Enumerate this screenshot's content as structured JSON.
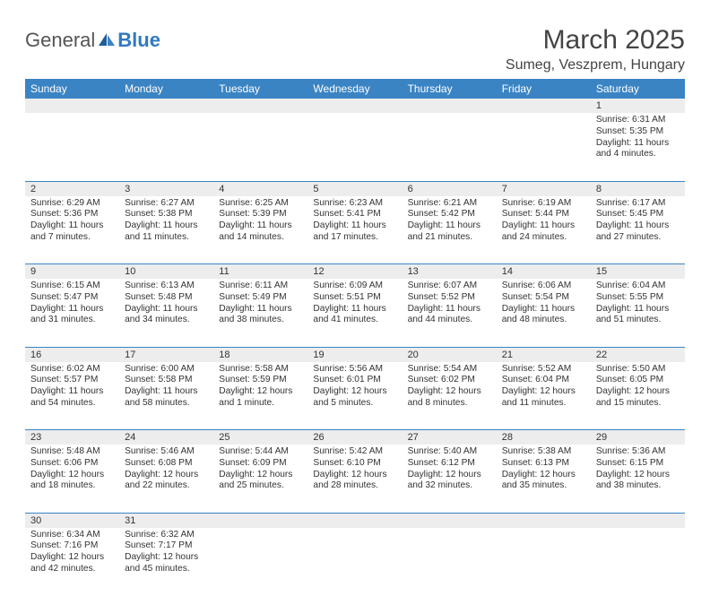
{
  "logo": {
    "text1": "General",
    "text2": "Blue"
  },
  "title": "March 2025",
  "location": "Sumeg, Veszprem, Hungary",
  "header_bg": "#3b84c4",
  "header_text_color": "#ffffff",
  "daynum_bg": "#ededed",
  "border_color": "#3b84c4",
  "page_bg": "#ffffff",
  "days": [
    "Sunday",
    "Monday",
    "Tuesday",
    "Wednesday",
    "Thursday",
    "Friday",
    "Saturday"
  ],
  "weeks": [
    [
      null,
      null,
      null,
      null,
      null,
      null,
      {
        "n": "1",
        "sr": "Sunrise: 6:31 AM",
        "ss": "Sunset: 5:35 PM",
        "dl": "Daylight: 11 hours and 4 minutes."
      }
    ],
    [
      {
        "n": "2",
        "sr": "Sunrise: 6:29 AM",
        "ss": "Sunset: 5:36 PM",
        "dl": "Daylight: 11 hours and 7 minutes."
      },
      {
        "n": "3",
        "sr": "Sunrise: 6:27 AM",
        "ss": "Sunset: 5:38 PM",
        "dl": "Daylight: 11 hours and 11 minutes."
      },
      {
        "n": "4",
        "sr": "Sunrise: 6:25 AM",
        "ss": "Sunset: 5:39 PM",
        "dl": "Daylight: 11 hours and 14 minutes."
      },
      {
        "n": "5",
        "sr": "Sunrise: 6:23 AM",
        "ss": "Sunset: 5:41 PM",
        "dl": "Daylight: 11 hours and 17 minutes."
      },
      {
        "n": "6",
        "sr": "Sunrise: 6:21 AM",
        "ss": "Sunset: 5:42 PM",
        "dl": "Daylight: 11 hours and 21 minutes."
      },
      {
        "n": "7",
        "sr": "Sunrise: 6:19 AM",
        "ss": "Sunset: 5:44 PM",
        "dl": "Daylight: 11 hours and 24 minutes."
      },
      {
        "n": "8",
        "sr": "Sunrise: 6:17 AM",
        "ss": "Sunset: 5:45 PM",
        "dl": "Daylight: 11 hours and 27 minutes."
      }
    ],
    [
      {
        "n": "9",
        "sr": "Sunrise: 6:15 AM",
        "ss": "Sunset: 5:47 PM",
        "dl": "Daylight: 11 hours and 31 minutes."
      },
      {
        "n": "10",
        "sr": "Sunrise: 6:13 AM",
        "ss": "Sunset: 5:48 PM",
        "dl": "Daylight: 11 hours and 34 minutes."
      },
      {
        "n": "11",
        "sr": "Sunrise: 6:11 AM",
        "ss": "Sunset: 5:49 PM",
        "dl": "Daylight: 11 hours and 38 minutes."
      },
      {
        "n": "12",
        "sr": "Sunrise: 6:09 AM",
        "ss": "Sunset: 5:51 PM",
        "dl": "Daylight: 11 hours and 41 minutes."
      },
      {
        "n": "13",
        "sr": "Sunrise: 6:07 AM",
        "ss": "Sunset: 5:52 PM",
        "dl": "Daylight: 11 hours and 44 minutes."
      },
      {
        "n": "14",
        "sr": "Sunrise: 6:06 AM",
        "ss": "Sunset: 5:54 PM",
        "dl": "Daylight: 11 hours and 48 minutes."
      },
      {
        "n": "15",
        "sr": "Sunrise: 6:04 AM",
        "ss": "Sunset: 5:55 PM",
        "dl": "Daylight: 11 hours and 51 minutes."
      }
    ],
    [
      {
        "n": "16",
        "sr": "Sunrise: 6:02 AM",
        "ss": "Sunset: 5:57 PM",
        "dl": "Daylight: 11 hours and 54 minutes."
      },
      {
        "n": "17",
        "sr": "Sunrise: 6:00 AM",
        "ss": "Sunset: 5:58 PM",
        "dl": "Daylight: 11 hours and 58 minutes."
      },
      {
        "n": "18",
        "sr": "Sunrise: 5:58 AM",
        "ss": "Sunset: 5:59 PM",
        "dl": "Daylight: 12 hours and 1 minute."
      },
      {
        "n": "19",
        "sr": "Sunrise: 5:56 AM",
        "ss": "Sunset: 6:01 PM",
        "dl": "Daylight: 12 hours and 5 minutes."
      },
      {
        "n": "20",
        "sr": "Sunrise: 5:54 AM",
        "ss": "Sunset: 6:02 PM",
        "dl": "Daylight: 12 hours and 8 minutes."
      },
      {
        "n": "21",
        "sr": "Sunrise: 5:52 AM",
        "ss": "Sunset: 6:04 PM",
        "dl": "Daylight: 12 hours and 11 minutes."
      },
      {
        "n": "22",
        "sr": "Sunrise: 5:50 AM",
        "ss": "Sunset: 6:05 PM",
        "dl": "Daylight: 12 hours and 15 minutes."
      }
    ],
    [
      {
        "n": "23",
        "sr": "Sunrise: 5:48 AM",
        "ss": "Sunset: 6:06 PM",
        "dl": "Daylight: 12 hours and 18 minutes."
      },
      {
        "n": "24",
        "sr": "Sunrise: 5:46 AM",
        "ss": "Sunset: 6:08 PM",
        "dl": "Daylight: 12 hours and 22 minutes."
      },
      {
        "n": "25",
        "sr": "Sunrise: 5:44 AM",
        "ss": "Sunset: 6:09 PM",
        "dl": "Daylight: 12 hours and 25 minutes."
      },
      {
        "n": "26",
        "sr": "Sunrise: 5:42 AM",
        "ss": "Sunset: 6:10 PM",
        "dl": "Daylight: 12 hours and 28 minutes."
      },
      {
        "n": "27",
        "sr": "Sunrise: 5:40 AM",
        "ss": "Sunset: 6:12 PM",
        "dl": "Daylight: 12 hours and 32 minutes."
      },
      {
        "n": "28",
        "sr": "Sunrise: 5:38 AM",
        "ss": "Sunset: 6:13 PM",
        "dl": "Daylight: 12 hours and 35 minutes."
      },
      {
        "n": "29",
        "sr": "Sunrise: 5:36 AM",
        "ss": "Sunset: 6:15 PM",
        "dl": "Daylight: 12 hours and 38 minutes."
      }
    ],
    [
      {
        "n": "30",
        "sr": "Sunrise: 6:34 AM",
        "ss": "Sunset: 7:16 PM",
        "dl": "Daylight: 12 hours and 42 minutes."
      },
      {
        "n": "31",
        "sr": "Sunrise: 6:32 AM",
        "ss": "Sunset: 7:17 PM",
        "dl": "Daylight: 12 hours and 45 minutes."
      },
      null,
      null,
      null,
      null,
      null
    ]
  ]
}
